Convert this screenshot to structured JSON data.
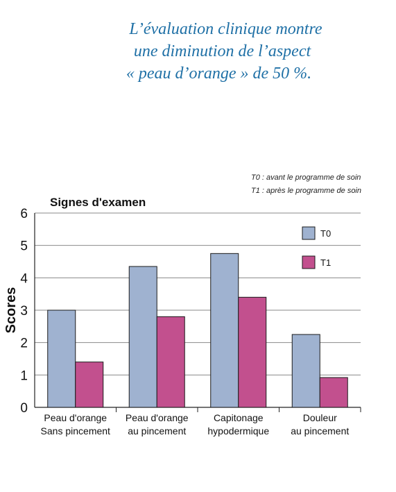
{
  "headline": {
    "line1": "L’évaluation clinique montre",
    "line2": "une diminution de l’aspect",
    "line3": "« peau d’orange » de 50 %."
  },
  "notes": {
    "t0": "T0 : avant le programme de soin",
    "t1": "T1 : après le programme de soin"
  },
  "colors": {
    "T0": "#9fb2d0",
    "T1": "#c2508e"
  },
  "chart_data": {
    "type": "bar",
    "title": "Signes d'examen",
    "ylabel": "Scores",
    "xlabel": "",
    "ylim": [
      0,
      6
    ],
    "yticks": [
      "0",
      "1",
      "2",
      "3",
      "4",
      "5",
      "6"
    ],
    "grid": true,
    "legend_position": "top-right",
    "categories": [
      [
        "Peau d'orange",
        "Sans pincement"
      ],
      [
        "Peau d'orange",
        "au pincement"
      ],
      [
        "Capitonage",
        "hypodermique"
      ],
      [
        "Douleur",
        "au pincement"
      ]
    ],
    "series": [
      {
        "name": "T0",
        "values": [
          3.0,
          4.35,
          4.75,
          2.25
        ]
      },
      {
        "name": "T1",
        "values": [
          1.4,
          2.8,
          3.4,
          0.92
        ]
      }
    ]
  }
}
